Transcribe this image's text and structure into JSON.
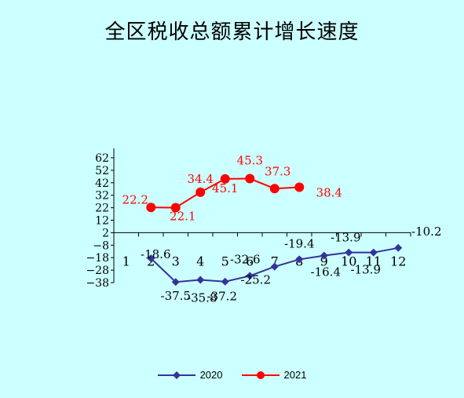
{
  "chart_data": {
    "type": "line",
    "title": "全区税收总额累计增长速度",
    "categories": [
      "1",
      "2",
      "3",
      "4",
      "5",
      "6",
      "7",
      "8",
      "9",
      "10",
      "11",
      "12"
    ],
    "yticks": [
      "62",
      "52",
      "42",
      "32",
      "22",
      "12",
      "2",
      "-8",
      "-18",
      "-28",
      "-38"
    ],
    "ylim": [
      -38,
      62
    ],
    "series": [
      {
        "name": "2020",
        "color": "#333399",
        "marker": "diamond",
        "values": [
          null,
          -18.6,
          -37.5,
          -35.8,
          -37.2,
          -32.6,
          -25.2,
          -19.4,
          -16.4,
          -13.9,
          -13.9,
          -10.2
        ]
      },
      {
        "name": "2021",
        "color": "#ff0000",
        "marker": "circle",
        "values": [
          null,
          22.2,
          22.1,
          34.4,
          45.1,
          45.3,
          37.3,
          38.4,
          null,
          null,
          null,
          null
        ]
      }
    ],
    "data_labels": {
      "2020": [
        "",
        "-18.6",
        "-37.5",
        "-35.8",
        "-37.2",
        "-32.6",
        "-25.2",
        "-19.4",
        "-16.4",
        "-13.9",
        "-13.9",
        "-10.2"
      ],
      "2021": [
        "",
        "22.2",
        "22.1",
        "34.4",
        "45.1",
        "45.3",
        "37.3",
        "38.4",
        "",
        "",
        "",
        ""
      ]
    },
    "legend_position": "bottom",
    "grid": false
  }
}
